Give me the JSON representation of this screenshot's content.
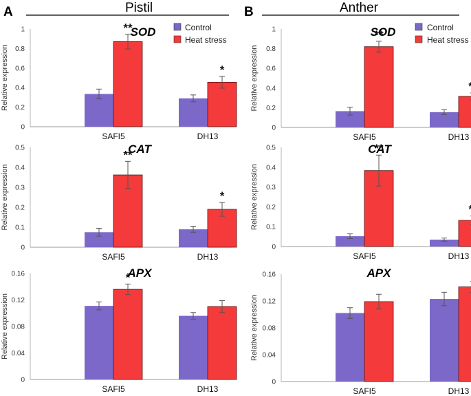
{
  "figure": {
    "panel_a_letter": "A",
    "panel_b_letter": "B",
    "column_a_title": "Pistil",
    "column_b_title": "Anther"
  },
  "legend": {
    "control_label": "Control",
    "heat_label": "Heat stress",
    "control_color": "#7b68c8",
    "heat_color": "#f43a3a"
  },
  "chart_data": [
    {
      "type": "bar",
      "panel": "A",
      "tissue": "Pistil",
      "gene": "SOD",
      "ylabel": "Relative expression",
      "ylim": [
        0,
        1
      ],
      "yticks": [
        "0",
        "0.2",
        "0.4",
        "0.6",
        "0.8",
        "1"
      ],
      "categories": [
        "SAFI5",
        "DH13"
      ],
      "series": [
        {
          "name": "Control",
          "values": [
            0.335,
            0.29
          ],
          "errors": [
            0.05,
            0.035
          ]
        },
        {
          "name": "Heat stress",
          "values": [
            0.87,
            0.455
          ],
          "errors": [
            0.075,
            0.06
          ]
        }
      ],
      "significance": [
        "**",
        "*"
      ]
    },
    {
      "type": "bar",
      "panel": "A",
      "tissue": "Pistil",
      "gene": "CAT",
      "ylabel": "Relative expression",
      "ylim": [
        0,
        0.5
      ],
      "yticks": [
        "0",
        "0.1",
        "0.2",
        "0.3",
        "0.4",
        "0.5"
      ],
      "categories": [
        "SAFI5",
        "DH13"
      ],
      "series": [
        {
          "name": "Control",
          "values": [
            0.075,
            0.09
          ],
          "errors": [
            0.02,
            0.015
          ]
        },
        {
          "name": "Heat stress",
          "values": [
            0.362,
            0.19
          ],
          "errors": [
            0.068,
            0.035
          ]
        }
      ],
      "significance": [
        "**",
        "*"
      ]
    },
    {
      "type": "bar",
      "panel": "A",
      "tissue": "Pistil",
      "gene": "APX",
      "ylabel": "Relative expression",
      "ylim": [
        0,
        0.16
      ],
      "yticks": [
        "0",
        "0.04",
        "0.08",
        "0.12",
        "0.16"
      ],
      "categories": [
        "SAFI5",
        "DH13"
      ],
      "series": [
        {
          "name": "Control",
          "values": [
            0.111,
            0.096
          ],
          "errors": [
            0.006,
            0.005
          ]
        },
        {
          "name": "Heat stress",
          "values": [
            0.136,
            0.11
          ],
          "errors": [
            0.008,
            0.009
          ]
        }
      ],
      "significance": [
        "*",
        ""
      ]
    },
    {
      "type": "bar",
      "panel": "B",
      "tissue": "Anther",
      "gene": "SOD",
      "ylabel": "Relative expression",
      "ylim": [
        0,
        1
      ],
      "yticks": [
        "0",
        "0.2",
        "0.4",
        "0.6",
        "0.8",
        "1"
      ],
      "categories": [
        "SAFI5",
        "DH13"
      ],
      "series": [
        {
          "name": "Control",
          "values": [
            0.165,
            0.155
          ],
          "errors": [
            0.04,
            0.025
          ]
        },
        {
          "name": "Heat stress",
          "values": [
            0.82,
            0.315
          ],
          "errors": [
            0.055,
            0.035
          ]
        }
      ],
      "significance": [
        "**",
        "**"
      ]
    },
    {
      "type": "bar",
      "panel": "B",
      "tissue": "Anther",
      "gene": "CAT",
      "ylabel": "Relative expression",
      "ylim": [
        0,
        0.5
      ],
      "yticks": [
        "0",
        "0.1",
        "0.2",
        "0.3",
        "0.4",
        "0.5"
      ],
      "categories": [
        "SAFI5",
        "DH13"
      ],
      "series": [
        {
          "name": "Control",
          "values": [
            0.052,
            0.035
          ],
          "errors": [
            0.012,
            0.008
          ]
        },
        {
          "name": "Heat stress",
          "values": [
            0.383,
            0.132
          ],
          "errors": [
            0.078,
            0.022
          ]
        }
      ],
      "significance": [
        "**",
        "**"
      ]
    },
    {
      "type": "bar",
      "panel": "B",
      "tissue": "Anther",
      "gene": "APX",
      "ylabel": "Relative expression",
      "ylim": [
        0,
        0.16
      ],
      "yticks": [
        "0",
        "0.04",
        "0.08",
        "0.12",
        "0.16"
      ],
      "categories": [
        "SAFI5",
        "DH13"
      ],
      "series": [
        {
          "name": "Control",
          "values": [
            0.102,
            0.123
          ],
          "errors": [
            0.008,
            0.01
          ]
        },
        {
          "name": "Heat stress",
          "values": [
            0.119,
            0.141
          ],
          "errors": [
            0.011,
            0.008
          ]
        }
      ],
      "significance": [
        "",
        ""
      ]
    }
  ]
}
